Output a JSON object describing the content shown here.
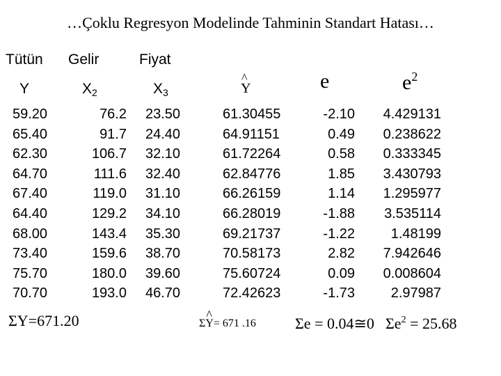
{
  "title": "…Çoklu Regresyon Modelinde Tahminin Standart Hatası…",
  "headers": {
    "tutun": "Tütün",
    "gelir": "Gelir",
    "fiyat": "Fiyat"
  },
  "symbols": {
    "y": "Y",
    "x2_base": "X",
    "x2_sub": "2",
    "x3_base": "X",
    "x3_sub": "3",
    "yhat": "Y",
    "e": "e",
    "e2_base": "e",
    "e2_sup": "2"
  },
  "columns": {
    "y": [
      "59.20",
      "65.40",
      "62.30",
      "64.70",
      "67.40",
      "64.40",
      "68.00",
      "73.40",
      "75.70",
      "70.70"
    ],
    "x2": [
      "76.2",
      "91.7",
      "106.7",
      "111.6",
      "119.0",
      "129.2",
      "143.4",
      "159.6",
      "180.0",
      "193.0"
    ],
    "x3": [
      "23.50",
      "24.40",
      "32.10",
      "32.40",
      "31.10",
      "34.10",
      "35.30",
      "38.70",
      "39.60",
      "46.70"
    ],
    "yhat": [
      "61.30455",
      "64.91151",
      "61.72264",
      "62.84776",
      "66.26159",
      "66.28019",
      "69.21737",
      "70.58173",
      "75.60724",
      "72.42623"
    ],
    "e": [
      "-2.10",
      "0.49",
      "0.58",
      "1.85",
      "1.14",
      "-1.88",
      "-1.22",
      "2.82",
      "0.09",
      "-1.73"
    ],
    "e2": [
      "4.429131",
      "0.238622",
      "0.333345",
      "3.430793",
      "1.295977",
      "3.535114",
      "1.48199",
      "7.942646",
      "0.008604",
      "2.97987"
    ]
  },
  "totals": {
    "sum_y": "ΣY=671.20",
    "sum_yhat_prefix": "Σ",
    "sum_yhat_symbol": "Y",
    "sum_yhat_value": "= 671 .16",
    "sum_e": "Σe = 0.04≅0",
    "sum_e2_base": "Σe",
    "sum_e2_sup": "2",
    "sum_e2_value": " = 25.68"
  }
}
